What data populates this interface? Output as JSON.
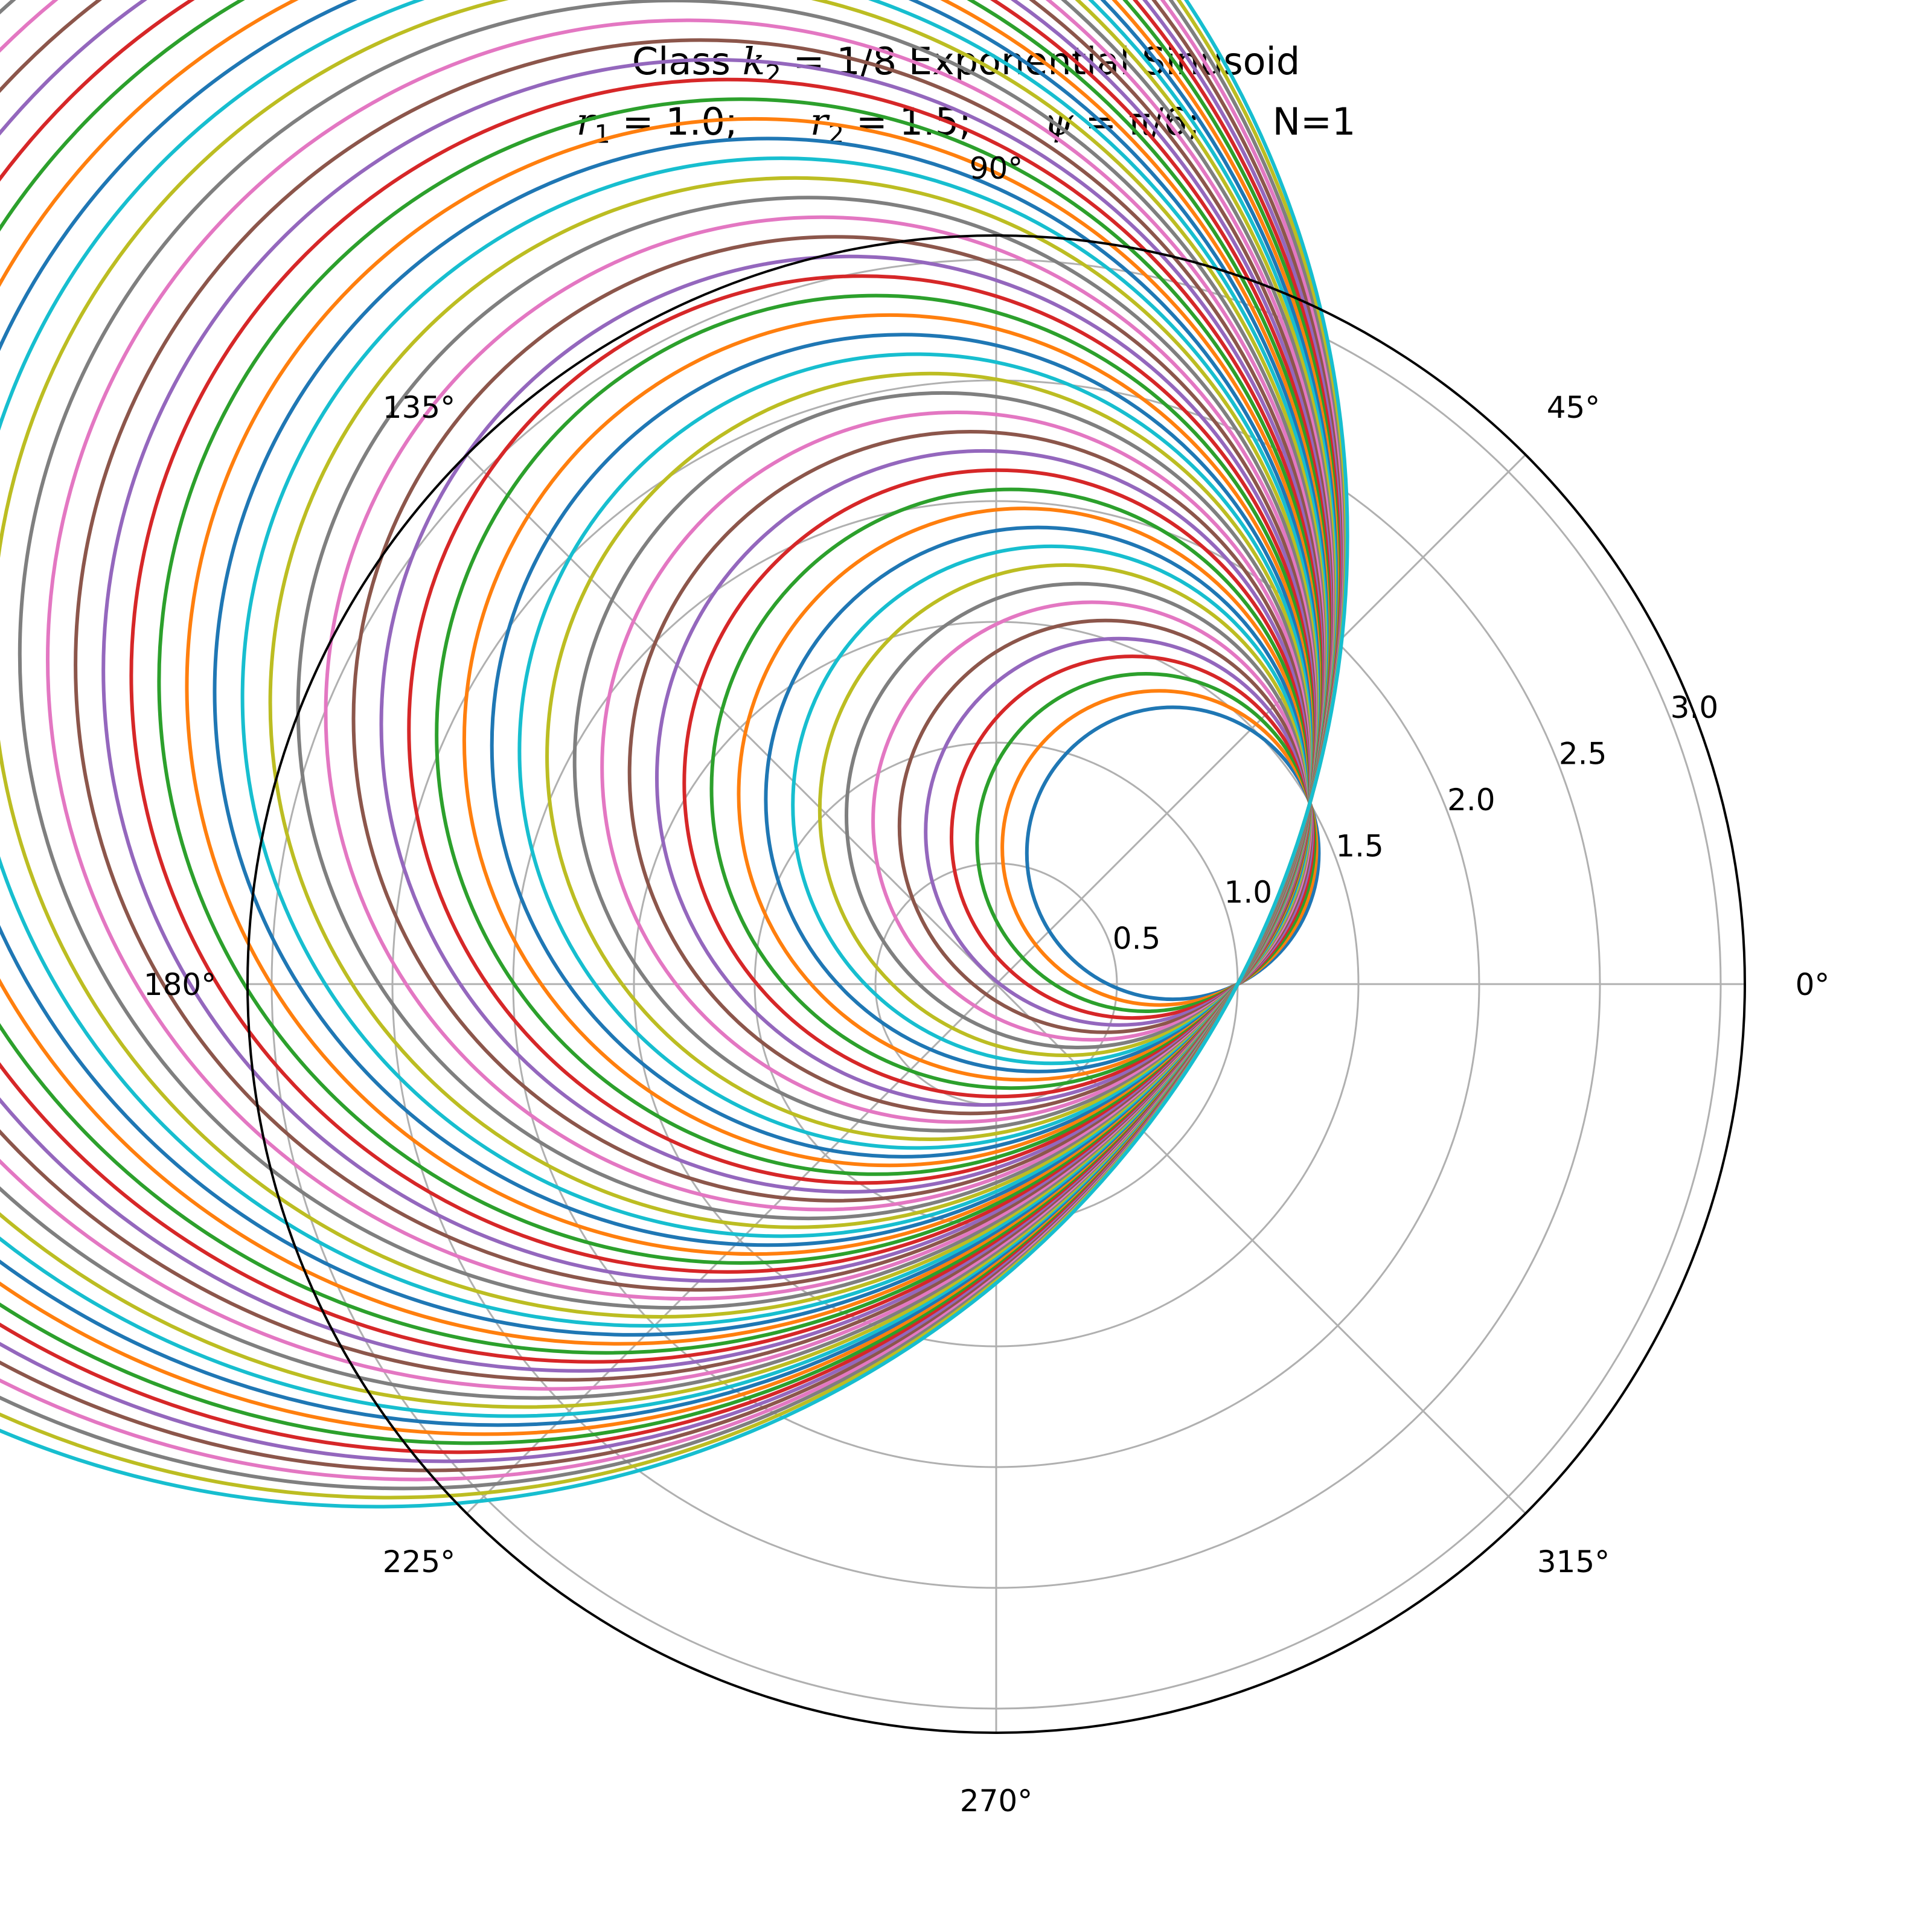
{
  "chart_data": {
    "type": "line",
    "projection": "polar",
    "title": {
      "line1_prefix": "Class ",
      "k_symbol": "k",
      "k_subscript": "2",
      "k_value": " = 1/8",
      "line1_suffix": " Exponential Sinusoid",
      "params": [
        {
          "symbol": "r",
          "sub": "1",
          "rest": " = 1.0;"
        },
        {
          "symbol": "r",
          "sub": "2",
          "rest": " = 1.5;"
        },
        {
          "symbol": "ψ",
          "sub": "",
          "rest": " = π/6;"
        },
        {
          "symbol": "",
          "sub": "",
          "rest": "N=1"
        }
      ]
    },
    "r_ticks": [
      0.5,
      1.0,
      1.5,
      2.0,
      2.5,
      3.0
    ],
    "r_tick_labels": [
      "0.5",
      "1.0",
      "1.5",
      "2.0",
      "2.5",
      "3.0"
    ],
    "r_max": 3.1,
    "theta_ticks_deg": [
      0,
      45,
      90,
      135,
      180,
      225,
      270,
      315
    ],
    "theta_tick_labels": [
      "0°",
      "45°",
      "90°",
      "135°",
      "180°",
      "225°",
      "270°",
      "315°"
    ],
    "grid": true,
    "series_count": 60,
    "series_model": {
      "description": "circles passing through (r=1.0, θ=0) and (r=1.5, θ=π/6)",
      "angle_range_deg": [
        0,
        360
      ],
      "point_a": {
        "r": 1.0,
        "theta_deg": 0
      },
      "point_b": {
        "r": 1.5,
        "theta_deg": 30
      },
      "center_param_range": [
        0.45,
        4.0
      ]
    },
    "palette": [
      "#1f77b4",
      "#ff7f0e",
      "#2ca02c",
      "#d62728",
      "#9467bd",
      "#8c564b",
      "#e377c2",
      "#7f7f7f",
      "#bcbd22",
      "#17becf"
    ],
    "grid_color": "#b0b0b0",
    "frame_color": "#000000"
  }
}
